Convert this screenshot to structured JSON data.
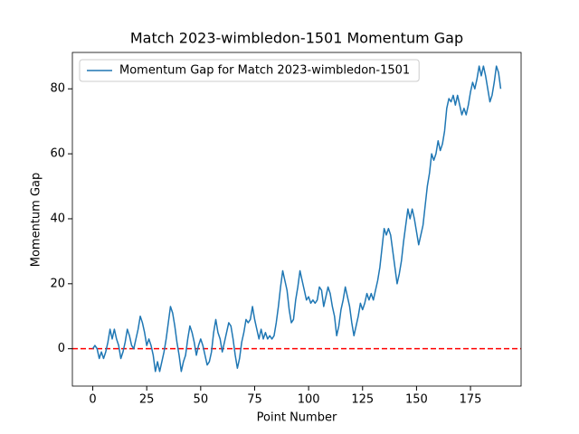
{
  "chart_data": {
    "type": "line",
    "title": "Match 2023-wimbledon-1501 Momentum Gap",
    "x_label": "Point Number",
    "y_label": "Momentum Gap",
    "x": [
      0,
      1,
      2,
      3,
      4,
      5,
      6,
      7,
      8,
      9,
      10,
      11,
      12,
      13,
      14,
      15,
      16,
      17,
      18,
      19,
      20,
      21,
      22,
      23,
      24,
      25,
      26,
      27,
      28,
      29,
      30,
      31,
      32,
      33,
      34,
      35,
      36,
      37,
      38,
      39,
      40,
      41,
      42,
      43,
      44,
      45,
      46,
      47,
      48,
      49,
      50,
      51,
      52,
      53,
      54,
      55,
      56,
      57,
      58,
      59,
      60,
      61,
      62,
      63,
      64,
      65,
      66,
      67,
      68,
      69,
      70,
      71,
      72,
      73,
      74,
      75,
      76,
      77,
      78,
      79,
      80,
      81,
      82,
      83,
      84,
      85,
      86,
      87,
      88,
      89,
      90,
      91,
      92,
      93,
      94,
      95,
      96,
      97,
      98,
      99,
      100,
      101,
      102,
      103,
      104,
      105,
      106,
      107,
      108,
      109,
      110,
      111,
      112,
      113,
      114,
      115,
      116,
      117,
      118,
      119,
      120,
      121,
      122,
      123,
      124,
      125,
      126,
      127,
      128,
      129,
      130,
      131,
      132,
      133,
      134,
      135,
      136,
      137,
      138,
      139,
      140,
      141,
      142,
      143,
      144,
      145,
      146,
      147,
      148,
      149,
      150,
      151,
      152,
      153,
      154,
      155,
      156,
      157,
      158,
      159,
      160,
      161,
      162,
      163,
      164,
      165,
      166,
      167,
      168,
      169,
      170,
      171,
      172,
      173,
      174,
      175,
      176,
      177,
      178,
      179,
      180,
      181,
      182,
      183,
      184,
      185,
      186,
      187,
      188,
      189
    ],
    "series": [
      {
        "name": "Momentum Gap for Match 2023-wimbledon-1501",
        "color": "#1f77b4",
        "values": [
          0,
          1,
          0,
          -3,
          -1,
          -3,
          -1,
          2,
          6,
          3,
          6,
          3,
          1,
          -3,
          -1,
          2,
          6,
          4,
          1,
          0,
          3,
          6,
          10,
          8,
          5,
          1,
          3,
          1,
          -2,
          -7,
          -4,
          -7,
          -4,
          -1,
          3,
          8,
          13,
          11,
          7,
          2,
          -2,
          -7,
          -4,
          -2,
          3,
          7,
          5,
          2,
          -2,
          1,
          3,
          1,
          -2,
          -5,
          -4,
          -1,
          5,
          9,
          5,
          3,
          -1,
          2,
          5,
          8,
          7,
          3,
          -2,
          -6,
          -3,
          2,
          5,
          9,
          8,
          9,
          13,
          9,
          6,
          3,
          6,
          3,
          5,
          3,
          4,
          3,
          4,
          8,
          13,
          19,
          24,
          21,
          18,
          12,
          8,
          9,
          15,
          19,
          24,
          21,
          18,
          15,
          16,
          14,
          15,
          14,
          15,
          19,
          18,
          13,
          16,
          19,
          17,
          13,
          10,
          4,
          7,
          12,
          15,
          19,
          16,
          13,
          8,
          4,
          7,
          10,
          14,
          12,
          14,
          17,
          15,
          17,
          15,
          18,
          21,
          25,
          31,
          37,
          35,
          37,
          35,
          30,
          25,
          20,
          23,
          27,
          33,
          38,
          43,
          40,
          43,
          40,
          36,
          32,
          35,
          38,
          44,
          50,
          54,
          60,
          58,
          60,
          64,
          61,
          63,
          67,
          74,
          77,
          76,
          78,
          75,
          78,
          75,
          72,
          74,
          72,
          75,
          79,
          82,
          80,
          83,
          87,
          84,
          87,
          84,
          80,
          76,
          78,
          82,
          87,
          85,
          80
        ]
      }
    ],
    "hlines": [
      {
        "y": 0,
        "color": "#ff0000",
        "style": "dashed"
      }
    ],
    "xlim": [
      -9.45,
      198.45
    ],
    "xticks": [
      0,
      25,
      50,
      75,
      100,
      125,
      150,
      175
    ],
    "ylim": [
      -11.5,
      91.2
    ],
    "yticks": [
      0,
      20,
      40,
      60,
      80
    ],
    "legend": "upper left"
  }
}
